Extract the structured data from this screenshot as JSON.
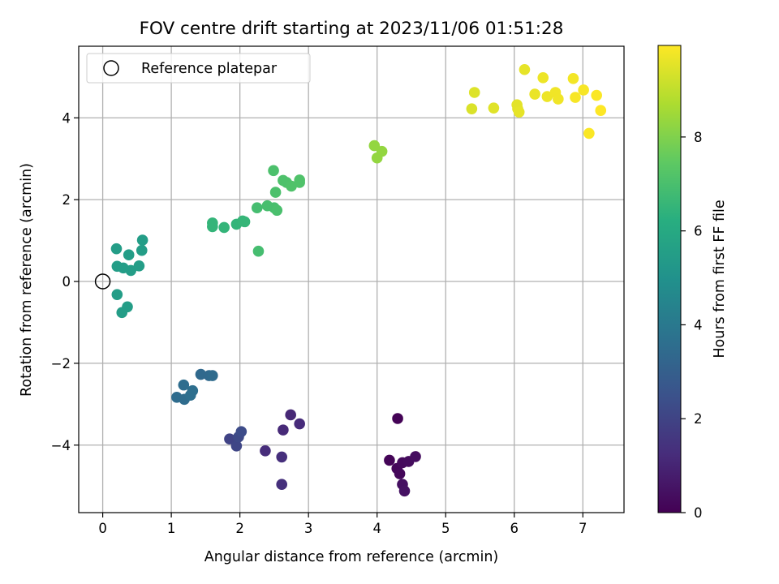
{
  "chart_data": {
    "type": "scatter",
    "title": "FOV centre drift starting at 2023/11/06 01:51:28",
    "xlabel": "Angular distance from reference (arcmin)",
    "ylabel": "Rotation from reference (arcmin)",
    "xlim": [
      -0.35,
      7.6
    ],
    "ylim": [
      -5.65,
      5.75
    ],
    "xticks": [
      0,
      1,
      2,
      3,
      4,
      5,
      6,
      7
    ],
    "yticks": [
      -4,
      -2,
      0,
      2,
      4
    ],
    "xtick_labels": [
      "0",
      "1",
      "2",
      "3",
      "4",
      "5",
      "6",
      "7"
    ],
    "ytick_labels": [
      "−4",
      "−2",
      "0",
      "2",
      "4"
    ],
    "grid": true,
    "legend": {
      "placement": "top-left",
      "entries": [
        {
          "label": "Reference platepar",
          "marker": "open-circle"
        }
      ]
    },
    "reference_point": {
      "x": 0,
      "y": 0
    },
    "colorbar": {
      "label": "Hours from first FF file",
      "colormap": "viridis",
      "range": [
        0,
        9.95
      ],
      "ticks": [
        0,
        2,
        4,
        6,
        8
      ],
      "tick_labels": [
        "0",
        "2",
        "4",
        "6",
        "8"
      ]
    },
    "points": [
      {
        "x": 4.3,
        "y": -3.35,
        "c": 0.05
      },
      {
        "x": 4.18,
        "y": -4.37,
        "c": 0.1
      },
      {
        "x": 4.29,
        "y": -4.57,
        "c": 0.15
      },
      {
        "x": 4.33,
        "y": -4.7,
        "c": 0.2
      },
      {
        "x": 4.37,
        "y": -4.43,
        "c": 0.25
      },
      {
        "x": 4.46,
        "y": -4.4,
        "c": 0.3
      },
      {
        "x": 4.56,
        "y": -4.28,
        "c": 0.35
      },
      {
        "x": 4.37,
        "y": -4.96,
        "c": 0.4
      },
      {
        "x": 4.4,
        "y": -5.12,
        "c": 0.45
      },
      {
        "x": 2.74,
        "y": -3.26,
        "c": 1.1
      },
      {
        "x": 2.63,
        "y": -3.63,
        "c": 1.15
      },
      {
        "x": 2.87,
        "y": -3.48,
        "c": 1.2
      },
      {
        "x": 2.37,
        "y": -4.14,
        "c": 1.25
      },
      {
        "x": 2.61,
        "y": -4.29,
        "c": 1.3
      },
      {
        "x": 2.61,
        "y": -4.96,
        "c": 1.35
      },
      {
        "x": 1.85,
        "y": -3.85,
        "c": 2.0
      },
      {
        "x": 1.95,
        "y": -4.02,
        "c": 2.1
      },
      {
        "x": 1.98,
        "y": -3.8,
        "c": 2.2
      },
      {
        "x": 2.02,
        "y": -3.67,
        "c": 2.3
      },
      {
        "x": 1.43,
        "y": -2.27,
        "c": 3.4
      },
      {
        "x": 1.55,
        "y": -2.3,
        "c": 3.4
      },
      {
        "x": 1.6,
        "y": -2.3,
        "c": 3.45
      },
      {
        "x": 1.08,
        "y": -2.83,
        "c": 3.5
      },
      {
        "x": 1.19,
        "y": -2.88,
        "c": 3.5
      },
      {
        "x": 1.18,
        "y": -2.53,
        "c": 3.55
      },
      {
        "x": 1.28,
        "y": -2.78,
        "c": 3.6
      },
      {
        "x": 1.31,
        "y": -2.67,
        "c": 3.6
      },
      {
        "x": 0.2,
        "y": 0.8,
        "c": 5.5
      },
      {
        "x": 0.58,
        "y": 1.01,
        "c": 5.5
      },
      {
        "x": 0.57,
        "y": 0.76,
        "c": 5.5
      },
      {
        "x": 0.38,
        "y": 0.65,
        "c": 5.5
      },
      {
        "x": 0.21,
        "y": 0.37,
        "c": 5.5
      },
      {
        "x": 0.3,
        "y": 0.33,
        "c": 5.5
      },
      {
        "x": 0.41,
        "y": 0.27,
        "c": 5.5
      },
      {
        "x": 0.53,
        "y": 0.38,
        "c": 5.5
      },
      {
        "x": 0.21,
        "y": -0.32,
        "c": 5.5
      },
      {
        "x": 0.28,
        "y": -0.76,
        "c": 5.5
      },
      {
        "x": 0.36,
        "y": -0.62,
        "c": 5.5
      },
      {
        "x": 1.6,
        "y": 1.43,
        "c": 6.5
      },
      {
        "x": 1.6,
        "y": 1.34,
        "c": 6.5
      },
      {
        "x": 1.77,
        "y": 1.32,
        "c": 6.5
      },
      {
        "x": 1.95,
        "y": 1.4,
        "c": 6.5
      },
      {
        "x": 2.04,
        "y": 1.48,
        "c": 6.55
      },
      {
        "x": 2.07,
        "y": 1.46,
        "c": 6.55
      },
      {
        "x": 2.25,
        "y": 1.8,
        "c": 6.9
      },
      {
        "x": 2.27,
        "y": 0.74,
        "c": 6.9
      },
      {
        "x": 2.4,
        "y": 1.85,
        "c": 6.95
      },
      {
        "x": 2.5,
        "y": 1.8,
        "c": 6.95
      },
      {
        "x": 2.54,
        "y": 1.74,
        "c": 7.0
      },
      {
        "x": 2.52,
        "y": 2.18,
        "c": 7.05
      },
      {
        "x": 2.49,
        "y": 2.71,
        "c": 7.05
      },
      {
        "x": 2.63,
        "y": 2.47,
        "c": 7.1
      },
      {
        "x": 2.68,
        "y": 2.42,
        "c": 7.1
      },
      {
        "x": 2.75,
        "y": 2.33,
        "c": 7.15
      },
      {
        "x": 2.87,
        "y": 2.48,
        "c": 7.15
      },
      {
        "x": 2.87,
        "y": 2.42,
        "c": 7.15
      },
      {
        "x": 3.96,
        "y": 3.32,
        "c": 8.3
      },
      {
        "x": 4.07,
        "y": 3.18,
        "c": 8.3
      },
      {
        "x": 4.0,
        "y": 3.02,
        "c": 8.3
      },
      {
        "x": 5.38,
        "y": 4.22,
        "c": 9.4
      },
      {
        "x": 5.42,
        "y": 4.62,
        "c": 9.45
      },
      {
        "x": 5.7,
        "y": 4.24,
        "c": 9.5
      },
      {
        "x": 6.04,
        "y": 4.32,
        "c": 9.55
      },
      {
        "x": 6.05,
        "y": 4.22,
        "c": 9.55
      },
      {
        "x": 6.07,
        "y": 4.14,
        "c": 9.6
      },
      {
        "x": 6.15,
        "y": 5.18,
        "c": 9.6
      },
      {
        "x": 6.3,
        "y": 4.58,
        "c": 9.65
      },
      {
        "x": 6.42,
        "y": 4.98,
        "c": 9.7
      },
      {
        "x": 6.48,
        "y": 4.52,
        "c": 9.7
      },
      {
        "x": 6.6,
        "y": 4.62,
        "c": 9.75
      },
      {
        "x": 6.64,
        "y": 4.46,
        "c": 9.75
      },
      {
        "x": 6.86,
        "y": 4.96,
        "c": 9.8
      },
      {
        "x": 6.89,
        "y": 4.5,
        "c": 9.85
      },
      {
        "x": 7.01,
        "y": 4.68,
        "c": 9.85
      },
      {
        "x": 7.09,
        "y": 3.62,
        "c": 9.9
      },
      {
        "x": 7.2,
        "y": 4.55,
        "c": 9.9
      },
      {
        "x": 7.26,
        "y": 4.18,
        "c": 9.95
      }
    ]
  }
}
